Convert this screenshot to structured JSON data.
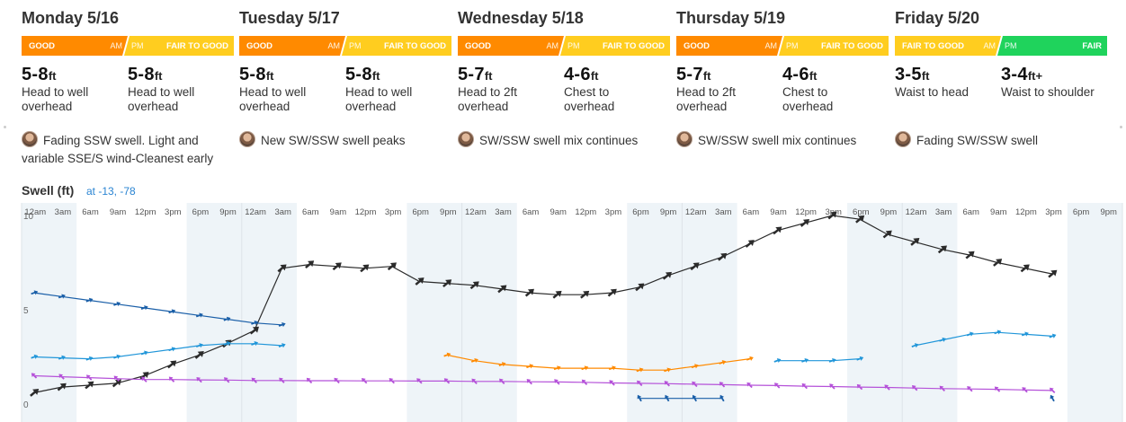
{
  "days": [
    {
      "title": "Monday 5/16",
      "am": {
        "rating": "GOOD",
        "color": "#ff8a00",
        "tag": "AM"
      },
      "pm": {
        "rating": "FAIR TO GOOD",
        "color": "#ffcd1f",
        "tag": "PM"
      },
      "am_surf": {
        "height": "5-8",
        "unit": "ft",
        "desc1": "Head to well",
        "desc2": "overhead"
      },
      "pm_surf": {
        "height": "5-8",
        "unit": "ft",
        "desc1": "Head to well",
        "desc2": "overhead"
      },
      "note": "Fading SSW swell. Light and variable SSE/S wind-Cleanest early"
    },
    {
      "title": "Tuesday 5/17",
      "am": {
        "rating": "GOOD",
        "color": "#ff8a00",
        "tag": "AM"
      },
      "pm": {
        "rating": "FAIR TO GOOD",
        "color": "#ffcd1f",
        "tag": "PM"
      },
      "am_surf": {
        "height": "5-8",
        "unit": "ft",
        "desc1": "Head to well",
        "desc2": "overhead"
      },
      "pm_surf": {
        "height": "5-8",
        "unit": "ft",
        "desc1": "Head to well",
        "desc2": "overhead"
      },
      "note": "New SW/SSW swell peaks"
    },
    {
      "title": "Wednesday 5/18",
      "am": {
        "rating": "GOOD",
        "color": "#ff8a00",
        "tag": "AM"
      },
      "pm": {
        "rating": "FAIR TO GOOD",
        "color": "#ffcd1f",
        "tag": "PM"
      },
      "am_surf": {
        "height": "5-7",
        "unit": "ft",
        "desc1": "Head to 2ft",
        "desc2": "overhead"
      },
      "pm_surf": {
        "height": "4-6",
        "unit": "ft",
        "desc1": "Chest to",
        "desc2": "overhead"
      },
      "note": "SW/SSW swell mix continues"
    },
    {
      "title": "Thursday 5/19",
      "am": {
        "rating": "GOOD",
        "color": "#ff8a00",
        "tag": "AM"
      },
      "pm": {
        "rating": "FAIR TO GOOD",
        "color": "#ffcd1f",
        "tag": "PM"
      },
      "am_surf": {
        "height": "5-7",
        "unit": "ft",
        "desc1": "Head to 2ft",
        "desc2": "overhead"
      },
      "pm_surf": {
        "height": "4-6",
        "unit": "ft",
        "desc1": "Chest to",
        "desc2": "overhead"
      },
      "note": "SW/SSW swell mix continues"
    },
    {
      "title": "Friday 5/20",
      "am": {
        "rating": "FAIR TO GOOD",
        "color": "#ffcd1f",
        "tag": "AM"
      },
      "pm": {
        "rating": "FAIR",
        "color": "#1fd35c",
        "tag": "PM"
      },
      "am_surf": {
        "height": "3-5",
        "unit": "ft",
        "desc1": "Waist to head",
        "desc2": ""
      },
      "pm_surf": {
        "height": "3-4",
        "unit": "ft+",
        "desc1": "Waist to shoulder",
        "desc2": ""
      },
      "note": "Fading SW/SSW swell"
    }
  ],
  "swell_section": {
    "title": "Swell (ft)",
    "location": "at -13, -78"
  },
  "chart_data": {
    "type": "line",
    "ylim": [
      0,
      10
    ],
    "y_ticks": [
      "0",
      "5",
      "10"
    ],
    "x_tick_labels": [
      "12am",
      "3am",
      "6am",
      "9am",
      "12pm",
      "3pm",
      "6pm",
      "9pm"
    ],
    "hours_per_point": 3,
    "series": [
      {
        "color": "#2b2b2b",
        "values": [
          0.6,
          0.9,
          1.0,
          1.1,
          1.5,
          2.1,
          2.6,
          3.2,
          3.9,
          7.2,
          7.4,
          7.3,
          7.2,
          7.3,
          6.5,
          6.4,
          6.3,
          6.1,
          5.9,
          5.8,
          5.8,
          5.9,
          6.2,
          6.8,
          7.3,
          7.8,
          8.5,
          9.2,
          9.6,
          10.0,
          9.8,
          9.0,
          8.6,
          8.2,
          7.9,
          7.5,
          7.2,
          6.9
        ]
      },
      {
        "color": "#1a5fa8",
        "values": [
          5.9,
          5.7,
          5.5,
          5.3,
          5.1,
          4.9,
          4.7,
          4.5,
          4.3,
          4.2,
          null,
          null,
          null,
          null,
          null,
          null,
          null,
          null,
          null,
          null,
          null,
          null,
          0.3,
          0.3,
          0.3,
          0.3,
          null,
          null,
          null,
          null,
          null,
          null,
          null,
          null,
          null,
          null,
          null,
          0.3
        ]
      },
      {
        "color": "#2196d9",
        "values": [
          2.5,
          2.45,
          2.4,
          2.5,
          2.7,
          2.9,
          3.1,
          3.2,
          3.2,
          3.1,
          null,
          null,
          null,
          null,
          null,
          null,
          null,
          null,
          null,
          null,
          null,
          null,
          null,
          null,
          null,
          null,
          null,
          2.3,
          2.3,
          2.3,
          2.4,
          null,
          3.1,
          3.4,
          3.7,
          3.8,
          3.7,
          3.6
        ]
      },
      {
        "color": "#ff8a00",
        "values": [
          null,
          null,
          null,
          null,
          null,
          null,
          null,
          null,
          null,
          null,
          null,
          null,
          null,
          null,
          null,
          2.6,
          2.3,
          2.1,
          2.0,
          1.9,
          1.9,
          1.9,
          1.8,
          1.8,
          2.0,
          2.2,
          2.4,
          null,
          null,
          null,
          null,
          null,
          null,
          null,
          null,
          null,
          null,
          null
        ]
      },
      {
        "color": "#b552d9",
        "values": [
          1.5,
          1.45,
          1.4,
          1.35,
          1.3,
          1.3,
          1.28,
          1.27,
          1.25,
          1.25,
          1.24,
          1.24,
          1.23,
          1.23,
          1.22,
          1.22,
          1.2,
          1.2,
          1.18,
          1.17,
          1.15,
          1.12,
          1.1,
          1.08,
          1.05,
          1.03,
          1.0,
          0.98,
          0.95,
          0.93,
          0.9,
          0.88,
          0.85,
          0.82,
          0.8,
          0.78,
          0.75,
          0.72
        ]
      }
    ]
  }
}
